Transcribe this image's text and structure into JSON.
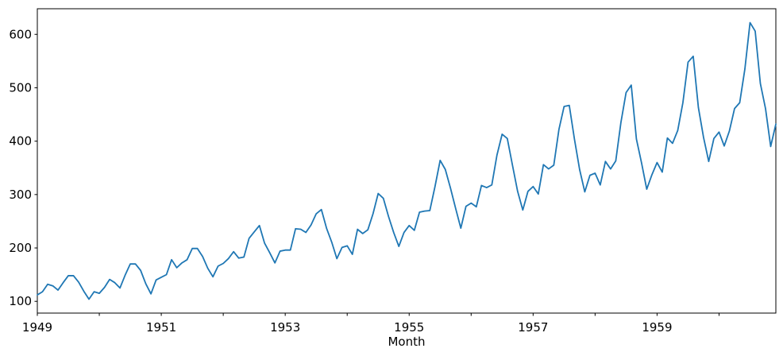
{
  "figure": {
    "background": "#ffffff",
    "axis_color": "#000000",
    "text_color": "#000000"
  },
  "chart_data": {
    "type": "line",
    "title": "",
    "xlabel": "Month",
    "ylabel": "",
    "grid": false,
    "legend": false,
    "line_color": "#1f77b4",
    "x_start_year": 1949,
    "x_samples_per_year": 12,
    "x_range_description": "monthly, Jan 1949 through Dec 1960",
    "values": [
      112,
      118,
      132,
      129,
      121,
      135,
      148,
      148,
      136,
      119,
      104,
      118,
      115,
      126,
      141,
      135,
      125,
      149,
      170,
      170,
      158,
      133,
      114,
      140,
      145,
      150,
      178,
      163,
      172,
      178,
      199,
      199,
      184,
      162,
      146,
      166,
      171,
      180,
      193,
      181,
      183,
      218,
      230,
      242,
      209,
      191,
      172,
      194,
      196,
      196,
      236,
      235,
      229,
      243,
      264,
      272,
      237,
      211,
      180,
      201,
      204,
      188,
      235,
      227,
      234,
      264,
      302,
      293,
      259,
      229,
      203,
      229,
      242,
      233,
      267,
      269,
      270,
      315,
      364,
      347,
      312,
      274,
      237,
      278,
      284,
      277,
      317,
      313,
      318,
      374,
      413,
      405,
      355,
      306,
      271,
      306,
      315,
      301,
      356,
      348,
      355,
      422,
      465,
      467,
      404,
      347,
      305,
      336,
      340,
      318,
      362,
      348,
      363,
      435,
      491,
      505,
      404,
      359,
      310,
      337,
      360,
      342,
      406,
      396,
      420,
      472,
      548,
      559,
      463,
      407,
      362,
      405,
      417,
      391,
      419,
      461,
      472,
      535,
      622,
      606,
      508,
      461,
      390,
      432
    ],
    "xlim": [
      1949.0,
      1960.9167
    ],
    "ylim": [
      78,
      648
    ],
    "xticks": [
      1949,
      1950,
      1951,
      1952,
      1953,
      1954,
      1955,
      1956,
      1957,
      1958,
      1959,
      1960
    ],
    "xtick_labels": [
      "1949",
      "",
      "1951",
      "",
      "1953",
      "",
      "1955",
      "",
      "1957",
      "",
      "1959",
      ""
    ],
    "yticks": [
      100,
      200,
      300,
      400,
      500,
      600
    ],
    "ytick_labels": [
      "100",
      "200",
      "300",
      "400",
      "500",
      "600"
    ]
  }
}
